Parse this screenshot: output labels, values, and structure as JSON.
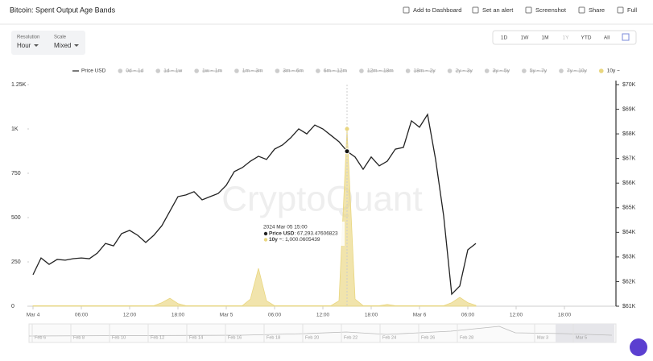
{
  "header": {
    "title": "Bitcoin: Spent Output Age Bands",
    "actions": [
      "Add to Dashboard",
      "Set an alert",
      "Screenshot",
      "Share",
      "Full"
    ]
  },
  "controls": {
    "resolution_label": "Resolution",
    "resolution": "Hour",
    "scale_label": "Scale",
    "scale": "Mixed",
    "ranges": [
      "1D",
      "1W",
      "1M",
      "1Y",
      "YTD",
      "All"
    ]
  },
  "watermark": "CryptoQuant",
  "tooltip": {
    "title": "2024 Mar 05 15:00",
    "rows": [
      {
        "label": "Price USD",
        "value": ": 67,293.47606823"
      },
      {
        "label": "10y ~",
        "value": ": 1,000.0605439"
      }
    ]
  },
  "navigator_labels": [
    "Feb 6",
    "Feb 8",
    "Feb 10",
    "Feb 12",
    "Feb 14",
    "Feb 16",
    "Feb 18",
    "Feb 20",
    "Feb 22",
    "Feb 24",
    "Feb 26",
    "Feb 28",
    "Mar 3",
    "Mar 5"
  ],
  "chart_data": {
    "type": "line",
    "categories": [
      "Mar 4",
      null,
      null,
      null,
      null,
      null,
      "06:00",
      null,
      null,
      null,
      null,
      null,
      "12:00",
      null,
      null,
      null,
      null,
      null,
      "18:00",
      null,
      null,
      null,
      null,
      null,
      "Mar 5",
      null,
      null,
      null,
      null,
      null,
      "06:00",
      null,
      null,
      null,
      null,
      null,
      "12:00",
      null,
      null,
      null,
      null,
      null,
      "18:00",
      null,
      null,
      null,
      null,
      null,
      "Mar 6",
      null,
      null,
      null,
      null,
      null,
      "06:00",
      null,
      null,
      null,
      null,
      null,
      "12:00",
      null,
      null,
      null,
      null,
      null,
      "18:00",
      null,
      null,
      null,
      null,
      null,
      null
    ],
    "series": [
      {
        "name": "Price USD",
        "type": "line",
        "axis": "y2",
        "color": "#222222",
        "values": [
          62280,
          62960,
          62700,
          62900,
          62870,
          62930,
          62960,
          62930,
          63160,
          63550,
          63450,
          63950,
          64080,
          63880,
          63590,
          63880,
          64270,
          64860,
          65450,
          65520,
          65650,
          65320,
          65450,
          65580,
          65910,
          66470,
          66630,
          66890,
          67090,
          66960,
          67380,
          67550,
          67840,
          68200,
          68000,
          68360,
          68200,
          67940,
          67680,
          67293.47606823,
          67060,
          66560,
          67060,
          66700,
          66890,
          67380,
          67450,
          68530,
          68270,
          68790,
          66960,
          64670,
          61490,
          61820,
          63290,
          63550,
          null,
          null,
          null,
          null,
          null,
          null,
          null,
          null,
          null,
          null,
          null,
          null,
          null,
          null,
          null,
          null,
          null
        ]
      },
      {
        "name": "10y ~",
        "type": "area",
        "color": "#e9d67f",
        "values": [
          3,
          3,
          3,
          3,
          3,
          3,
          3,
          3,
          3,
          3,
          3,
          3,
          3,
          3,
          3,
          3,
          20,
          45,
          15,
          3,
          3,
          3,
          3,
          3,
          3,
          3,
          3,
          40,
          214,
          30,
          3,
          3,
          3,
          3,
          3,
          3,
          3,
          3,
          30,
          1000.0605439,
          40,
          3,
          3,
          3,
          10,
          3,
          3,
          3,
          3,
          3,
          3,
          3,
          20,
          50,
          20,
          5,
          null,
          null,
          null,
          null,
          null,
          null,
          null,
          null,
          null,
          null,
          null,
          null,
          null,
          null,
          null,
          null,
          null
        ]
      }
    ],
    "hidden_series": [
      "0d ~ 1d",
      "1d ~ 1w",
      "1w ~ 1m",
      "1m ~ 3m",
      "3m ~ 6m",
      "6m ~ 12m",
      "12m ~ 18m",
      "18m ~ 2y",
      "2y ~ 3y",
      "3y ~ 5y",
      "5y ~ 7y",
      "7y ~ 10y"
    ],
    "ylim": [
      0,
      1250
    ],
    "yticks": [
      0,
      250,
      500,
      750,
      {
        "value": 1000,
        "label": "1K"
      },
      {
        "value": 1250,
        "label": "1.25K"
      }
    ],
    "y2lim": [
      61000,
      70000
    ],
    "y2ticks": [
      {
        "value": 61000,
        "label": "$61K"
      },
      {
        "value": 62000,
        "label": "$62K"
      },
      {
        "value": 63000,
        "label": "$63K"
      },
      {
        "value": 64000,
        "label": "$64K"
      },
      {
        "value": 65000,
        "label": "$65K"
      },
      {
        "value": 66000,
        "label": "$66K"
      },
      {
        "value": 67000,
        "label": "$67K"
      },
      {
        "value": 68000,
        "label": "$68K"
      },
      {
        "value": 69000,
        "label": "$69K"
      },
      {
        "value": 70000,
        "label": "$70K"
      }
    ],
    "grid": false
  }
}
